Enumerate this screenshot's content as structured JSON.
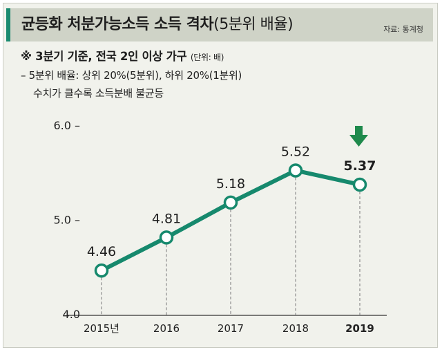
{
  "title": {
    "main": "균등화 처분가능소득 소득 격차",
    "paren": "(5분위 배율)",
    "source": "자료: 통계청"
  },
  "notes": {
    "line1": "※ 3분기 기준, 전국 2인 이상 가구",
    "unit": "(단위: 배)",
    "line2": "– 5분위 배율: 상위 20%(5분위), 하위 20%(1분위)",
    "line3": "수치가 클수록 소득분배 불균등"
  },
  "colors": {
    "line": "#16896d",
    "arrow": "#1f8a4c",
    "background": "#f1f2ec",
    "title_bar": "#cfd3c7"
  },
  "chart_data": {
    "type": "line",
    "categories": [
      "2015년",
      "2016",
      "2017",
      "2018",
      "2019"
    ],
    "values": [
      4.46,
      4.81,
      5.18,
      5.52,
      5.37
    ],
    "value_labels": [
      "4.46",
      "4.81",
      "5.18",
      "5.52",
      "5.37"
    ],
    "ylim": [
      4.0,
      6.0
    ],
    "yticks": [
      6.0,
      5.0,
      4.0
    ],
    "ytick_labels": [
      "6.0 –",
      "5.0 –",
      "4.0"
    ],
    "highlight_category": "2019",
    "highlight_marker": "down-arrow-icon",
    "grid": "dashed vertical drop lines"
  }
}
